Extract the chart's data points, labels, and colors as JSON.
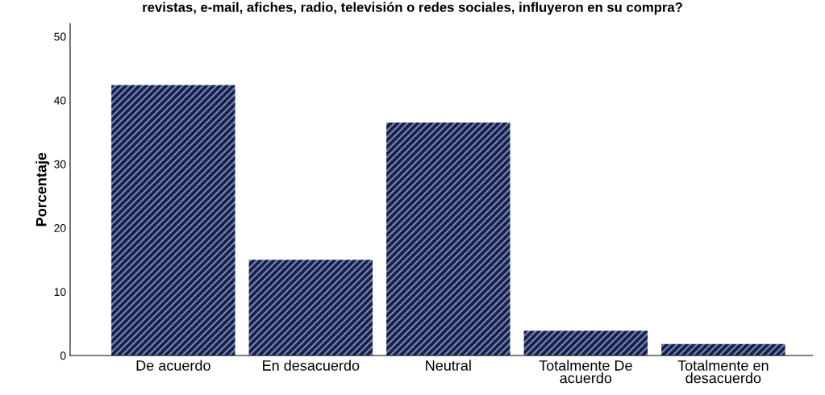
{
  "chart_data": {
    "type": "bar",
    "title": "revistas, e-mail, afiches, radio, televisión o redes sociales, influyeron en su compra?",
    "ylabel": "Porcentaje",
    "categories": [
      "De acuerdo",
      "En desacuerdo",
      "Neutral",
      "Totalmente De\nacuerdo",
      "Totalmente en\ndesacuerdo"
    ],
    "values": [
      42.4,
      15.0,
      36.5,
      3.9,
      1.8
    ],
    "color": "#1b2040",
    "ylim": [
      0,
      52
    ],
    "yticks": [
      0,
      10,
      20,
      30,
      40,
      50
    ],
    "grid": false
  }
}
